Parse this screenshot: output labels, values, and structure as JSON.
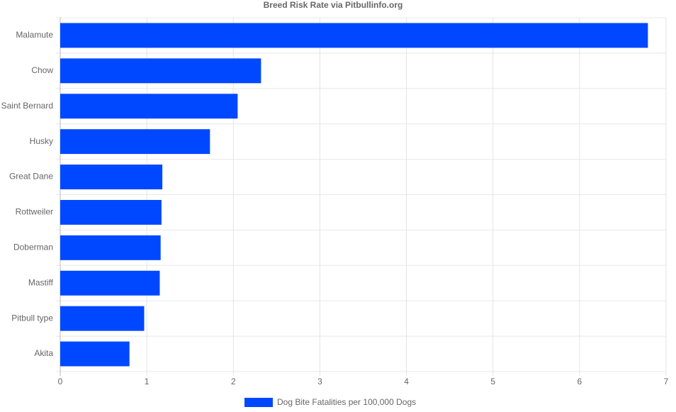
{
  "chart_data": {
    "type": "bar",
    "orientation": "horizontal",
    "title": "Breed Risk Rate via Pitbullinfo.org",
    "categories": [
      "Malamute",
      "Chow",
      "Saint Bernard",
      "Husky",
      "Great Dane",
      "Rottweiler",
      "Doberman",
      "Mastiff",
      "Pitbull type",
      "Akita"
    ],
    "series": [
      {
        "name": "Dog Bite Fatalities per 100,000 Dogs",
        "color": "#0048ff",
        "values": [
          6.79,
          2.32,
          2.05,
          1.73,
          1.18,
          1.17,
          1.16,
          1.15,
          0.97,
          0.8
        ]
      }
    ],
    "xlim": [
      0,
      7
    ],
    "xticks": [
      0,
      1,
      2,
      3,
      4,
      5,
      6,
      7
    ],
    "grid": true,
    "legend": "bottom"
  }
}
